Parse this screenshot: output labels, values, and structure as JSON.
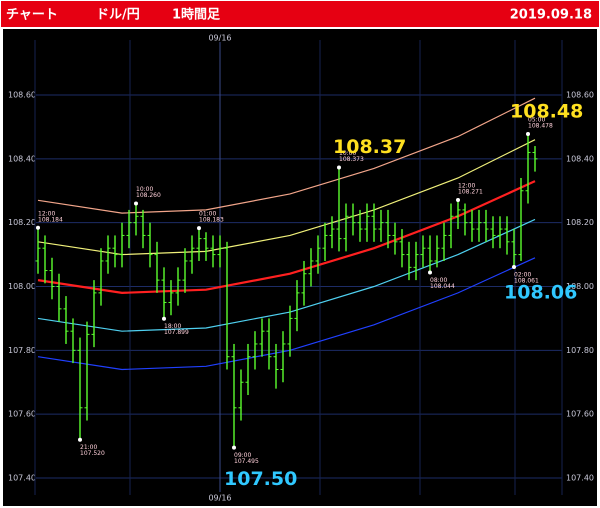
{
  "header": {
    "app": "チャート",
    "pair": "ドル/円",
    "timeframe": "1時間足",
    "date": "2019.09.18"
  },
  "chart_data": {
    "type": "ohlc",
    "categories": [
      null,
      null,
      null,
      null,
      null,
      null,
      null,
      null,
      null,
      null,
      null,
      null,
      null,
      null,
      null,
      null,
      null,
      null,
      null,
      null,
      null,
      null,
      null,
      null,
      null,
      null,
      "09/16",
      null,
      null,
      null,
      null,
      null,
      null,
      null,
      null,
      null,
      null,
      null,
      null,
      null,
      null,
      null,
      null,
      null,
      null,
      null,
      null,
      null,
      null,
      null,
      null,
      null,
      null,
      null,
      null,
      null,
      null,
      null,
      null,
      null,
      null,
      null,
      null,
      null,
      null,
      null,
      null,
      null,
      null,
      null,
      null,
      null
    ],
    "open": [
      108.08,
      108.12,
      108.05,
      108.0,
      107.93,
      107.86,
      107.8,
      107.62,
      107.85,
      107.98,
      108.08,
      108.12,
      108.1,
      108.16,
      108.2,
      108.22,
      108.16,
      108.1,
      108.02,
      107.95,
      107.98,
      108.02,
      108.08,
      108.12,
      108.15,
      108.12,
      108.1,
      108.12,
      107.78,
      107.62,
      107.7,
      107.78,
      107.82,
      107.86,
      107.78,
      107.74,
      107.82,
      107.9,
      107.98,
      108.04,
      108.08,
      108.12,
      108.16,
      108.18,
      108.15,
      108.22,
      108.2,
      108.18,
      108.22,
      108.18,
      108.2,
      108.16,
      108.14,
      108.1,
      108.06,
      108.1,
      108.12,
      108.08,
      108.12,
      108.16,
      108.22,
      108.24,
      108.2,
      108.18,
      108.2,
      108.18,
      108.16,
      108.18,
      108.14,
      108.1,
      108.3,
      108.42
    ],
    "high": [
      108.184,
      108.16,
      108.09,
      108.04,
      107.97,
      107.9,
      107.84,
      107.89,
      108.02,
      108.12,
      108.16,
      108.16,
      108.2,
      108.24,
      108.26,
      108.24,
      108.2,
      108.14,
      108.06,
      108.02,
      108.06,
      108.12,
      108.16,
      108.183,
      108.17,
      108.16,
      108.16,
      108.14,
      107.82,
      107.74,
      107.82,
      107.86,
      107.9,
      107.9,
      107.82,
      107.86,
      107.94,
      108.02,
      108.08,
      108.12,
      108.16,
      108.2,
      108.22,
      108.373,
      108.26,
      108.26,
      108.24,
      108.26,
      108.26,
      108.24,
      108.24,
      108.2,
      108.18,
      108.14,
      108.14,
      108.16,
      108.16,
      108.16,
      108.2,
      108.26,
      108.271,
      108.26,
      108.24,
      108.24,
      108.24,
      108.22,
      108.22,
      108.22,
      108.18,
      108.34,
      108.478,
      108.44
    ],
    "low": [
      108.04,
      108.01,
      107.96,
      107.89,
      107.82,
      107.76,
      107.52,
      107.58,
      107.81,
      107.94,
      108.04,
      108.06,
      108.06,
      108.12,
      108.16,
      108.12,
      108.06,
      107.98,
      107.899,
      107.91,
      107.94,
      107.98,
      108.04,
      108.08,
      108.08,
      108.06,
      108.06,
      107.74,
      107.495,
      107.58,
      107.66,
      107.74,
      107.78,
      107.74,
      107.68,
      107.7,
      107.78,
      107.86,
      107.94,
      108.0,
      108.04,
      108.08,
      108.12,
      108.11,
      108.11,
      108.16,
      108.14,
      108.14,
      108.14,
      108.14,
      108.12,
      108.1,
      108.06,
      108.02,
      108.02,
      108.06,
      108.044,
      108.06,
      108.08,
      108.12,
      108.18,
      108.16,
      108.14,
      108.14,
      108.14,
      108.12,
      108.12,
      108.1,
      108.061,
      108.08,
      108.26,
      108.36
    ],
    "close": [
      108.12,
      108.05,
      108.0,
      107.93,
      107.86,
      107.8,
      107.62,
      107.85,
      107.98,
      108.08,
      108.12,
      108.1,
      108.16,
      108.2,
      108.22,
      108.16,
      108.1,
      108.02,
      107.95,
      107.98,
      108.02,
      108.08,
      108.12,
      108.15,
      108.12,
      108.1,
      108.12,
      107.78,
      107.62,
      107.7,
      107.78,
      107.82,
      107.86,
      107.78,
      107.74,
      107.82,
      107.9,
      107.98,
      108.04,
      108.08,
      108.12,
      108.16,
      108.18,
      108.15,
      108.22,
      108.2,
      108.18,
      108.22,
      108.18,
      108.2,
      108.16,
      108.14,
      108.1,
      108.06,
      108.1,
      108.12,
      108.08,
      108.12,
      108.16,
      108.22,
      108.24,
      108.2,
      108.18,
      108.2,
      108.18,
      108.16,
      108.18,
      108.14,
      108.1,
      108.3,
      108.42,
      108.4
    ],
    "color": "#5cff2e",
    "ylim": [
      107.4,
      108.6
    ],
    "yticks": [
      {
        "value": 107.4,
        "label": "107.40"
      },
      {
        "value": 107.6,
        "label": "107.60"
      },
      {
        "value": 107.8,
        "label": "107.80"
      },
      {
        "value": 108.0,
        "label": "108.00"
      },
      {
        "value": 108.2,
        "label": "108.20"
      },
      {
        "value": 108.4,
        "label": "108.40"
      },
      {
        "value": 108.6,
        "label": "108.60"
      }
    ],
    "grid": true,
    "bands": {
      "x": [
        0,
        12,
        24,
        36,
        48,
        60,
        71
      ],
      "series": [
        {
          "color": "#f2a58a",
          "values": [
            108.27,
            108.23,
            108.24,
            108.29,
            108.37,
            108.47,
            108.59
          ]
        },
        {
          "color": "#f0f07a",
          "values": [
            108.14,
            108.1,
            108.11,
            108.16,
            108.24,
            108.34,
            108.46
          ]
        },
        {
          "color": "#ff2020",
          "values": [
            108.02,
            107.98,
            107.99,
            108.04,
            108.12,
            108.22,
            108.33
          ]
        },
        {
          "color": "#4fd0f0",
          "values": [
            107.9,
            107.86,
            107.87,
            107.92,
            108.0,
            108.1,
            108.21
          ]
        },
        {
          "color": "#2040ff",
          "values": [
            107.78,
            107.74,
            107.75,
            107.8,
            107.88,
            107.98,
            108.09
          ]
        }
      ]
    },
    "annotations": [
      {
        "index": 0,
        "time": "12:00",
        "price": {
          "value": 108.184,
          "label": "108.184"
        }
      },
      {
        "index": 6,
        "time": "21:00",
        "price": {
          "value": 107.52,
          "label": "107.520"
        }
      },
      {
        "index": 14,
        "time": "10:00",
        "price": {
          "value": 108.26,
          "label": "108.260"
        }
      },
      {
        "index": 18,
        "time": "18:00",
        "price": {
          "value": 107.899,
          "label": "107.899"
        }
      },
      {
        "index": 23,
        "time": "01:00",
        "price": {
          "value": 108.183,
          "label": "108.183"
        }
      },
      {
        "index": 28,
        "time": "09:00",
        "price": {
          "value": 107.495,
          "label": "107.495"
        }
      },
      {
        "index": 43,
        "time": "10:00",
        "price": {
          "value": 108.373,
          "label": "108.373"
        }
      },
      {
        "index": 56,
        "time": "08:00",
        "price": {
          "value": 108.044,
          "label": "108.044"
        }
      },
      {
        "index": 60,
        "time": "12:00",
        "price": {
          "value": 108.271,
          "label": "108.271"
        }
      },
      {
        "index": 68,
        "time": "02:00",
        "price": {
          "value": 108.061,
          "label": "108.061"
        }
      },
      {
        "index": 70,
        "time": "05:00",
        "price": {
          "value": 108.478,
          "label": "108.478"
        }
      }
    ],
    "big_labels": [
      {
        "index": 70,
        "text": "108.48",
        "color": "#ffe020"
      },
      {
        "index": 43,
        "text": "108.37",
        "color": "#ffe020"
      },
      {
        "index": 68,
        "text": "108.06",
        "color": "#30c8ff"
      },
      {
        "index": 28,
        "text": "107.50",
        "color": "#30c8ff"
      }
    ]
  }
}
